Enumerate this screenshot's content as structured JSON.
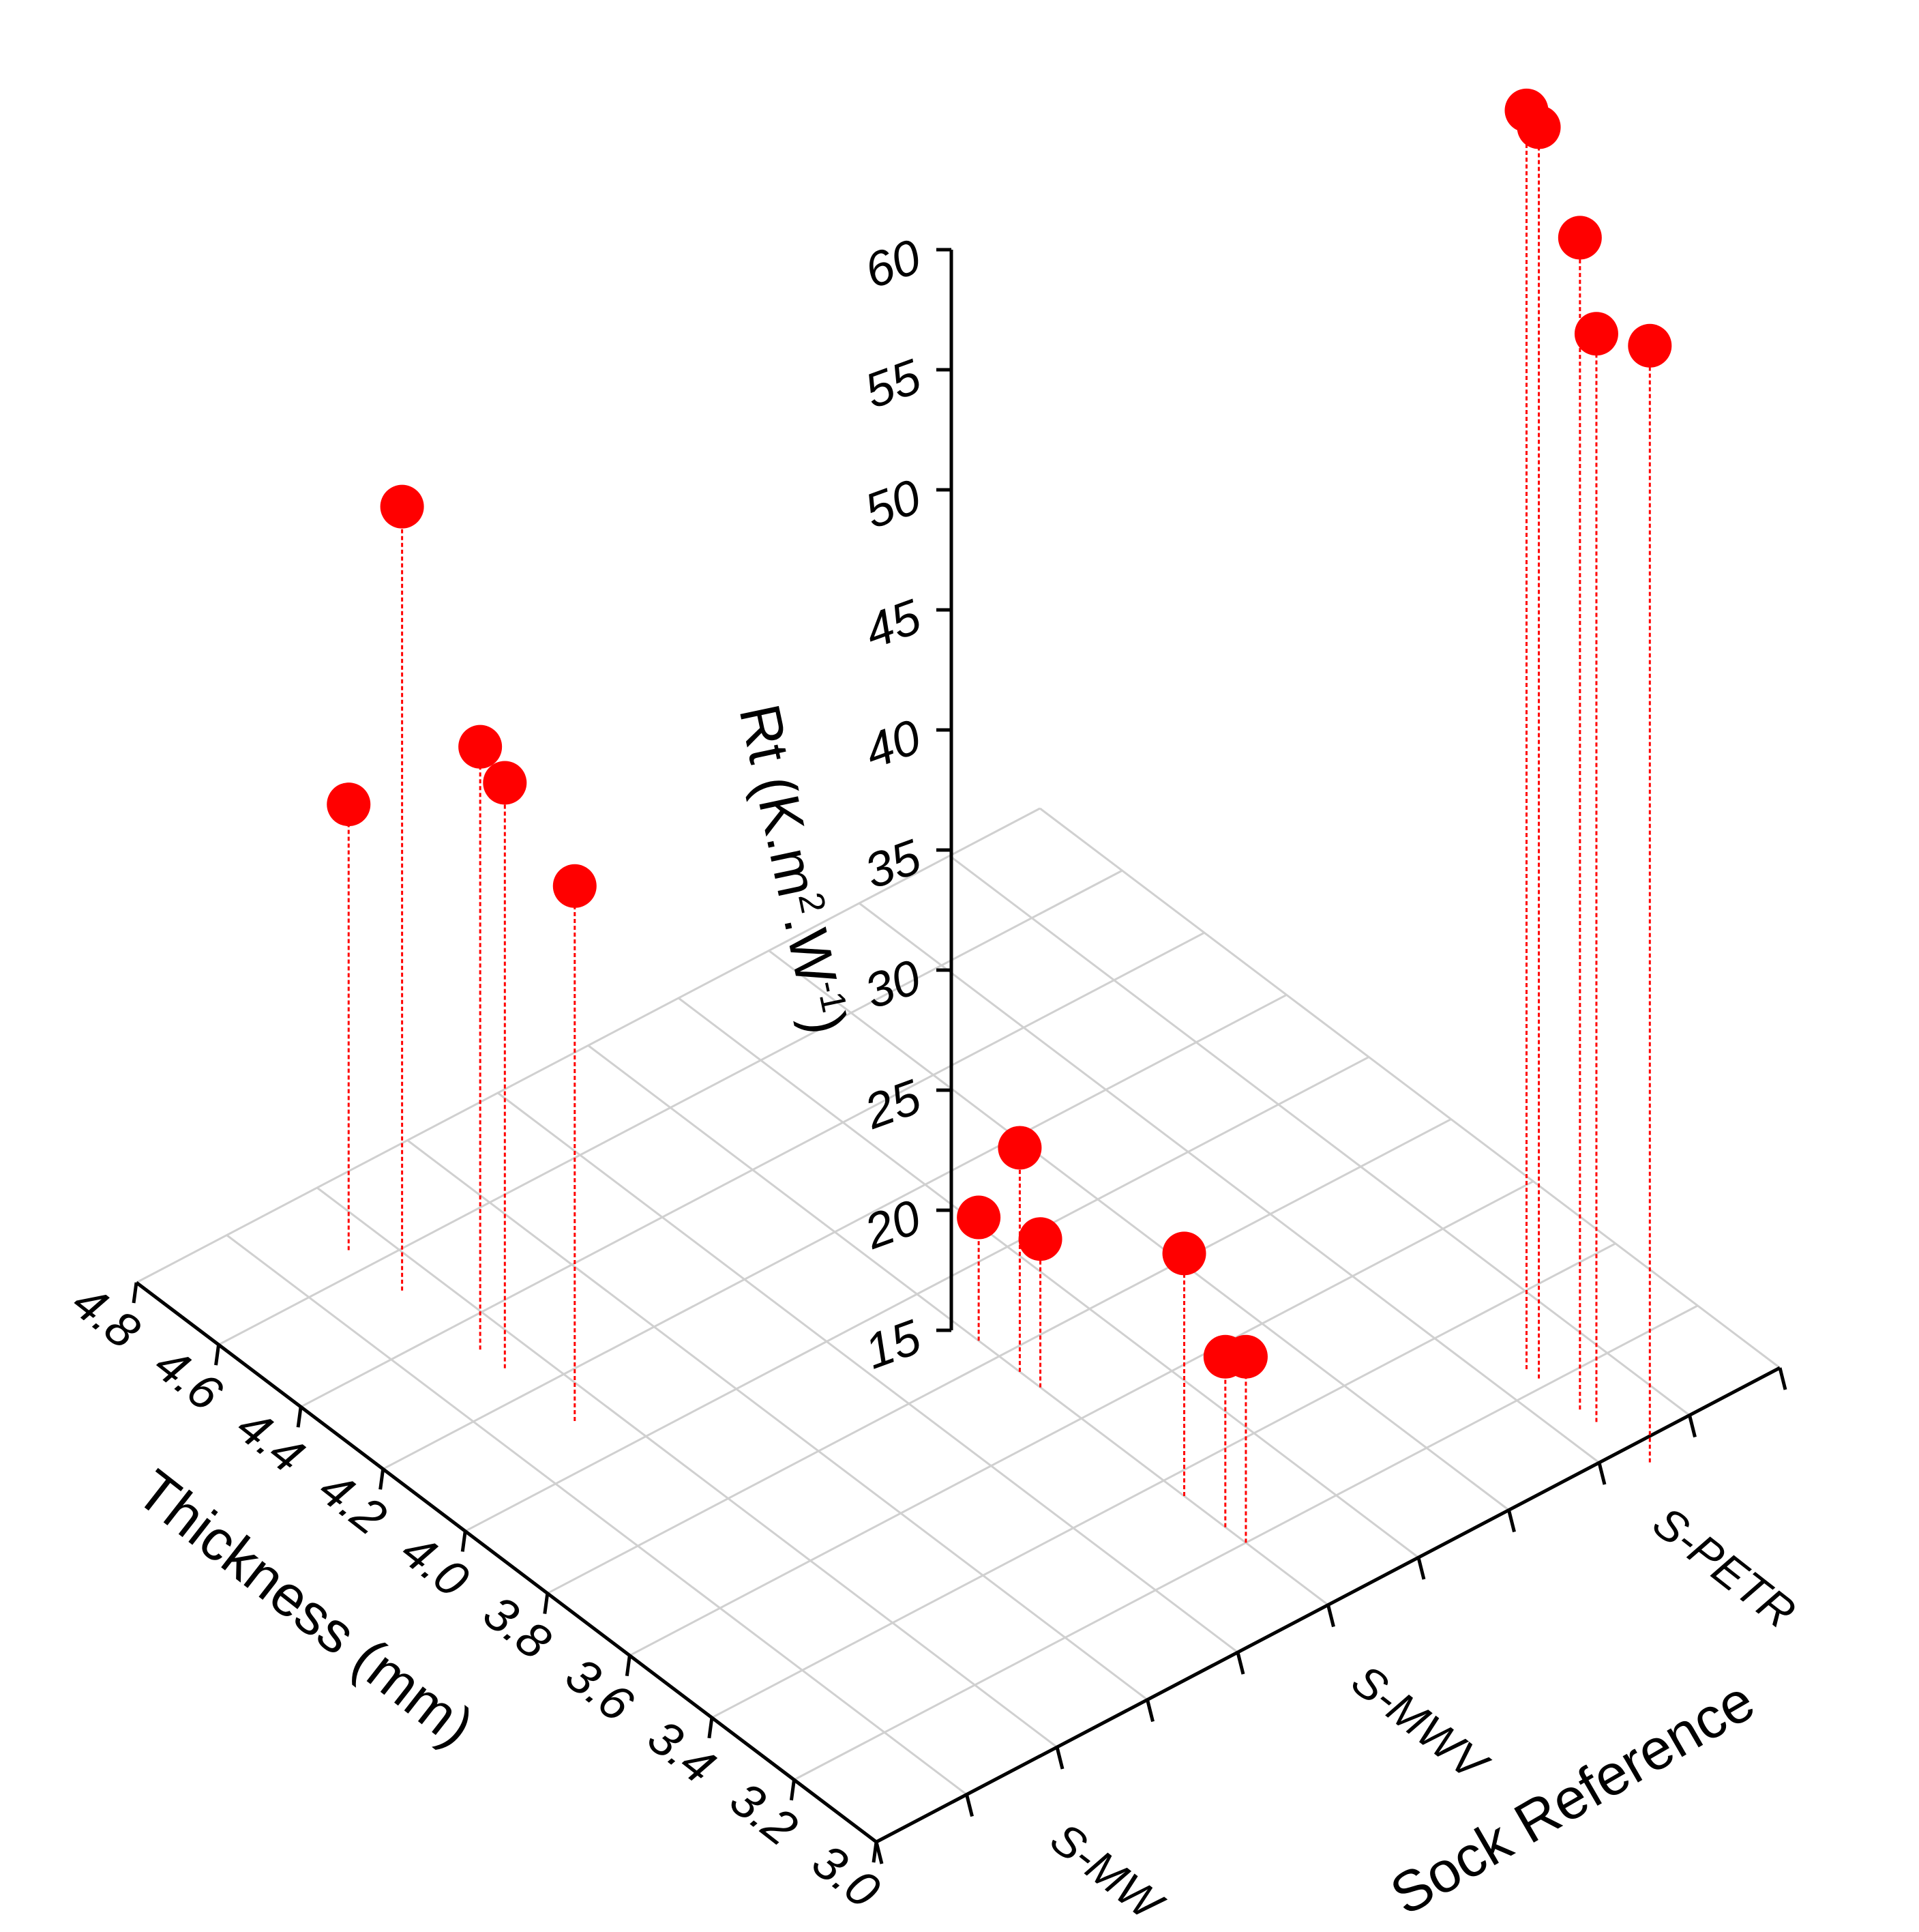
{
  "chart_data": {
    "type": "scatter",
    "projection": "3d",
    "title": "",
    "axes": {
      "x": {
        "label": "Thickness (mm)",
        "range": [
          3.0,
          4.8
        ],
        "ticks": [
          "3.0",
          "3.2",
          "3.4",
          "3.6",
          "3.8",
          "4.0",
          "4.2",
          "4.4",
          "4.6",
          "4.8"
        ]
      },
      "y": {
        "label": "Sock Reference",
        "categories": [
          "S-MW",
          "S-MWV",
          "S-PETR"
        ]
      },
      "z": {
        "label_main": "Rt (K.m",
        "label_sup1": "2",
        "label_mid": ".W",
        "label_sup2": "-1",
        "label_end": ")",
        "range": [
          15,
          60
        ],
        "ticks": [
          "15",
          "20",
          "25",
          "30",
          "35",
          "40",
          "45",
          "50",
          "55",
          "60"
        ]
      }
    },
    "grid": true,
    "marker_color": "#ff0000",
    "drop_lines": true,
    "points": [
      {
        "thickness": 4.52,
        "sock": "S-MW",
        "rt": 49.3
      },
      {
        "thickness": 4.65,
        "sock": "S-MW",
        "rt": 36.9
      },
      {
        "thickness": 4.33,
        "sock": "S-MW",
        "rt": 39.3
      },
      {
        "thickness": 4.27,
        "sock": "S-MW",
        "rt": 37.8
      },
      {
        "thickness": 4.1,
        "sock": "S-MW",
        "rt": 33.5
      },
      {
        "thickness": 3.25,
        "sock": "S-PETR",
        "rt": 65.8
      },
      {
        "thickness": 3.22,
        "sock": "S-PETR",
        "rt": 65.1
      },
      {
        "thickness": 3.12,
        "sock": "S-PETR",
        "rt": 60.5
      },
      {
        "thickness": 3.08,
        "sock": "S-PETR",
        "rt": 56.5
      },
      {
        "thickness": 2.95,
        "sock": "S-PETR",
        "rt": 56.0
      },
      {
        "thickness": 3.75,
        "sock": "S-MWV",
        "rt": 22.6
      },
      {
        "thickness": 3.85,
        "sock": "S-MWV",
        "rt": 19.7
      },
      {
        "thickness": 3.7,
        "sock": "S-MWV",
        "rt": 18.8
      },
      {
        "thickness": 3.35,
        "sock": "S-MWV",
        "rt": 18.2
      },
      {
        "thickness": 3.25,
        "sock": "S-MWV",
        "rt": 13.9
      },
      {
        "thickness": 3.2,
        "sock": "S-MWV",
        "rt": 13.9
      }
    ]
  }
}
